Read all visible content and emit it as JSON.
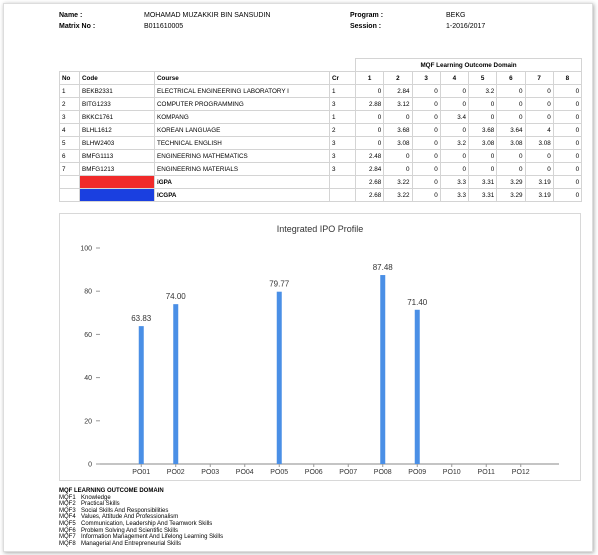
{
  "header": {
    "name_label": "Name :",
    "name": "MOHAMAD MUZAKKIR BIN SANSUDIN",
    "matrix_label": "Matrix No :",
    "matrix": "B011610005",
    "program_label": "Program :",
    "program": "BEKG",
    "session_label": "Session :",
    "session": "1-2016/2017"
  },
  "table": {
    "group_header": "MQF Learning Outcome Domain",
    "columns": [
      "No",
      "Code",
      "Course",
      "Cr",
      "1",
      "2",
      "3",
      "4",
      "5",
      "6",
      "7",
      "8"
    ],
    "rows": [
      [
        "1",
        "BEKB2331",
        "ELECTRICAL ENGINEERING LABORATORY I",
        "1",
        0,
        2.84,
        0,
        0,
        3.2,
        0,
        0,
        0
      ],
      [
        "2",
        "BITG1233",
        "COMPUTER PROGRAMMING",
        "3",
        2.88,
        3.12,
        0,
        0,
        0,
        0,
        0,
        0
      ],
      [
        "3",
        "BKKC1761",
        "KOMPANG",
        "1",
        0,
        0,
        0,
        3.4,
        0,
        0,
        0,
        0
      ],
      [
        "4",
        "BLHL1612",
        "KOREAN LANGUAGE",
        "2",
        0,
        3.68,
        0,
        0,
        3.68,
        3.64,
        4,
        0
      ],
      [
        "5",
        "BLHW2403",
        "TECHNICAL ENGLISH",
        "3",
        0,
        3.08,
        0,
        3.2,
        3.08,
        3.08,
        3.08,
        0
      ],
      [
        "6",
        "BMFG1113",
        "ENGINEERING MATHEMATICS",
        "3",
        2.48,
        0,
        0,
        0,
        0,
        0,
        0,
        0
      ],
      [
        "7",
        "BMFG1213",
        "ENGINEERING MATERIALS",
        "3",
        2.84,
        0,
        0,
        0,
        0,
        0,
        0,
        0
      ]
    ],
    "summary": [
      {
        "label": "iGPA",
        "color": "#f02a2a",
        "values": [
          2.68,
          3.22,
          0,
          3.3,
          3.31,
          3.29,
          3.19,
          0
        ]
      },
      {
        "label": "ICGPA",
        "color": "#1a3fe0",
        "values": [
          2.68,
          3.22,
          0,
          3.3,
          3.31,
          3.29,
          3.19,
          0
        ]
      }
    ]
  },
  "chart_data": {
    "type": "bar",
    "title": "Integrated IPO Profile",
    "categories": [
      "PO01",
      "PO02",
      "PO03",
      "PO04",
      "PO05",
      "PO06",
      "PO07",
      "PO08",
      "PO09",
      "PO10",
      "PO11",
      "PO12"
    ],
    "values": [
      63.83,
      74,
      null,
      null,
      79.77,
      null,
      null,
      87.48,
      71.4,
      null,
      null,
      null
    ],
    "value_labels": [
      "63.83",
      "74.00",
      null,
      null,
      "79.77",
      null,
      null,
      "87.48",
      "71.40",
      null,
      null,
      null
    ],
    "color": "#4a8fe6",
    "ylim": [
      0,
      100
    ],
    "yticks": [
      0,
      20,
      40,
      60,
      80,
      100
    ],
    "grid": false
  },
  "legend": {
    "title": "MQF LEARNING OUTCOME DOMAIN",
    "items": [
      {
        "code": "MQF1",
        "text": "Knowledge"
      },
      {
        "code": "MQF2",
        "text": "Practical Skills"
      },
      {
        "code": "MQF3",
        "text": "Social Skills And Responsibilities"
      },
      {
        "code": "MQF4",
        "text": "Values, Attitude And Professionalism"
      },
      {
        "code": "MQF5",
        "text": "Communication, Leadership And Teamwork Skills"
      },
      {
        "code": "MQF6",
        "text": "Problem Solving And Scientific Skills"
      },
      {
        "code": "MQF7",
        "text": "Information Management And Lifelong Learning Skills"
      },
      {
        "code": "MQF8",
        "text": "Managerial And Entrepreneurial Skills"
      }
    ]
  }
}
